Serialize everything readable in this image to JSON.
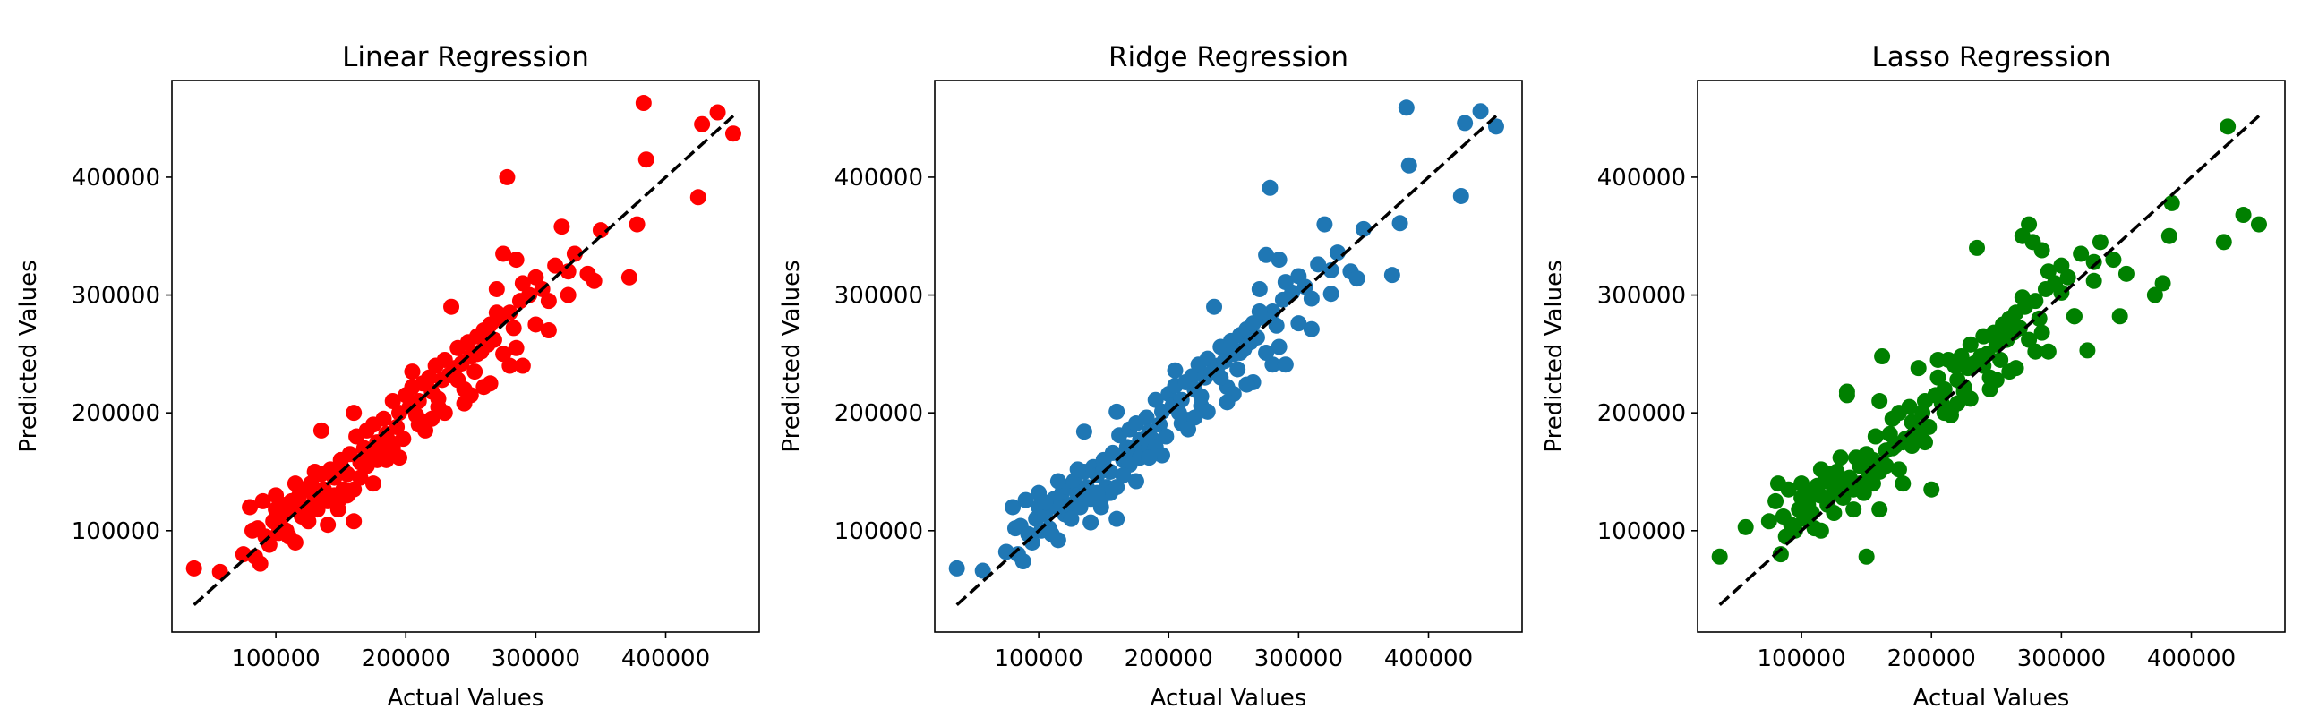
{
  "chart_data": [
    {
      "type": "scatter",
      "title": "Linear Regression",
      "xlabel": "Actual Values",
      "ylabel": "Predicted Values",
      "color": "#ff0000",
      "xlim": [
        20000,
        472000
      ],
      "ylim": [
        14000,
        482000
      ],
      "xticks": [
        100000,
        200000,
        300000,
        400000
      ],
      "yticks": [
        100000,
        200000,
        300000,
        400000
      ],
      "reference_line": {
        "x": [
          37000,
          452000
        ],
        "y": [
          37000,
          452000
        ],
        "style": "dashed",
        "color": "#000000"
      },
      "x": [
        37000,
        57000,
        75000,
        80000,
        82000,
        84000,
        86000,
        88000,
        90000,
        92000,
        95000,
        98000,
        100000,
        102000,
        105000,
        108000,
        110000,
        112000,
        114000,
        115000,
        118000,
        120000,
        122000,
        125000,
        127000,
        130000,
        132000,
        135000,
        137000,
        140000,
        142000,
        145000,
        148000,
        150000,
        152000,
        155000,
        157000,
        160000,
        162000,
        165000,
        168000,
        170000,
        172000,
        175000,
        178000,
        180000,
        183000,
        185000,
        188000,
        190000,
        193000,
        195000,
        198000,
        200000,
        203000,
        205000,
        208000,
        210000,
        213000,
        215000,
        218000,
        220000,
        223000,
        225000,
        228000,
        230000,
        233000,
        235000,
        238000,
        240000,
        243000,
        245000,
        248000,
        250000,
        253000,
        255000,
        258000,
        260000,
        263000,
        265000,
        268000,
        270000,
        272000,
        275000,
        278000,
        280000,
        283000,
        285000,
        288000,
        290000,
        295000,
        300000,
        305000,
        310000,
        315000,
        320000,
        325000,
        330000,
        340000,
        345000,
        350000,
        372000,
        378000,
        383000,
        385000,
        425000,
        428000,
        440000,
        452000,
        135000,
        150000,
        160000,
        178000,
        185000,
        205000,
        225000,
        240000,
        255000,
        270000,
        285000,
        300000,
        160000,
        140000,
        115000,
        100000,
        130000,
        148000,
        170000,
        190000,
        210000,
        230000,
        250000,
        265000,
        280000,
        215000,
        195000,
        175000,
        155000,
        120000,
        105000,
        125000,
        145000,
        165000,
        185000,
        220000,
        245000,
        260000,
        275000,
        290000,
        310000,
        325000
      ],
      "y": [
        68000,
        65000,
        80000,
        120000,
        100000,
        78000,
        102000,
        72000,
        125000,
        95000,
        88000,
        108000,
        118000,
        98000,
        112000,
        100000,
        95000,
        125000,
        118000,
        90000,
        130000,
        112000,
        135000,
        120000,
        140000,
        128000,
        118000,
        148000,
        135000,
        125000,
        152000,
        145000,
        118000,
        160000,
        135000,
        148000,
        165000,
        108000,
        180000,
        158000,
        170000,
        185000,
        162000,
        190000,
        175000,
        168000,
        195000,
        182000,
        175000,
        210000,
        188000,
        200000,
        178000,
        215000,
        205000,
        222000,
        198000,
        210000,
        225000,
        192000,
        230000,
        218000,
        240000,
        212000,
        228000,
        245000,
        232000,
        290000,
        238000,
        255000,
        242000,
        220000,
        260000,
        248000,
        235000,
        265000,
        252000,
        270000,
        258000,
        275000,
        262000,
        305000,
        280000,
        335000,
        400000,
        285000,
        272000,
        330000,
        295000,
        310000,
        300000,
        315000,
        305000,
        295000,
        325000,
        358000,
        320000,
        335000,
        318000,
        312000,
        355000,
        315000,
        360000,
        463000,
        415000,
        383000,
        445000,
        455000,
        437000,
        185000,
        150000,
        135000,
        160000,
        170000,
        235000,
        205000,
        228000,
        250000,
        285000,
        255000,
        275000,
        200000,
        105000,
        140000,
        130000,
        150000,
        125000,
        155000,
        170000,
        190000,
        200000,
        215000,
        225000,
        240000,
        185000,
        162000,
        140000,
        130000,
        118000,
        122000,
        108000,
        130000,
        145000,
        160000,
        195000,
        208000,
        222000,
        250000,
        240000,
        270000,
        300000
      ]
    },
    {
      "type": "scatter",
      "title": "Ridge Regression",
      "xlabel": "Actual Values",
      "ylabel": "Predicted Values",
      "color": "#1f77b4",
      "xlim": [
        20000,
        472000
      ],
      "ylim": [
        14000,
        482000
      ],
      "xticks": [
        100000,
        200000,
        300000,
        400000
      ],
      "yticks": [
        100000,
        200000,
        300000,
        400000
      ],
      "reference_line": {
        "x": [
          37000,
          452000
        ],
        "y": [
          37000,
          452000
        ],
        "style": "dashed",
        "color": "#000000"
      },
      "x": [
        37000,
        57000,
        75000,
        80000,
        82000,
        84000,
        86000,
        88000,
        90000,
        92000,
        95000,
        98000,
        100000,
        102000,
        105000,
        108000,
        110000,
        112000,
        114000,
        115000,
        118000,
        120000,
        122000,
        125000,
        127000,
        130000,
        132000,
        135000,
        137000,
        140000,
        142000,
        145000,
        148000,
        150000,
        152000,
        155000,
        157000,
        160000,
        162000,
        165000,
        168000,
        170000,
        172000,
        175000,
        178000,
        180000,
        183000,
        185000,
        188000,
        190000,
        193000,
        195000,
        198000,
        200000,
        203000,
        205000,
        208000,
        210000,
        213000,
        215000,
        218000,
        220000,
        223000,
        225000,
        228000,
        230000,
        233000,
        235000,
        238000,
        240000,
        243000,
        245000,
        248000,
        250000,
        253000,
        255000,
        258000,
        260000,
        263000,
        265000,
        268000,
        270000,
        272000,
        275000,
        278000,
        280000,
        283000,
        285000,
        288000,
        290000,
        295000,
        300000,
        305000,
        310000,
        315000,
        320000,
        325000,
        330000,
        340000,
        345000,
        350000,
        372000,
        378000,
        383000,
        385000,
        425000,
        428000,
        440000,
        452000,
        135000,
        150000,
        160000,
        178000,
        185000,
        205000,
        225000,
        240000,
        255000,
        270000,
        285000,
        300000,
        160000,
        140000,
        115000,
        100000,
        130000,
        148000,
        170000,
        190000,
        210000,
        230000,
        250000,
        265000,
        280000,
        215000,
        195000,
        175000,
        155000,
        120000,
        105000,
        125000,
        145000,
        165000,
        185000,
        220000,
        245000,
        260000,
        275000,
        290000,
        310000,
        325000
      ],
      "y": [
        68000,
        66000,
        82000,
        120000,
        102000,
        80000,
        104000,
        74000,
        126000,
        97000,
        90000,
        110000,
        120000,
        100000,
        114000,
        102000,
        97000,
        127000,
        120000,
        92000,
        132000,
        114000,
        137000,
        122000,
        142000,
        130000,
        120000,
        150000,
        137000,
        127000,
        154000,
        147000,
        120000,
        160000,
        137000,
        150000,
        166000,
        110000,
        181000,
        160000,
        171000,
        186000,
        164000,
        191000,
        177000,
        170000,
        196000,
        184000,
        177000,
        211000,
        190000,
        201000,
        180000,
        216000,
        206000,
        223000,
        200000,
        211000,
        226000,
        194000,
        231000,
        220000,
        241000,
        214000,
        230000,
        246000,
        234000,
        290000,
        240000,
        256000,
        244000,
        222000,
        261000,
        250000,
        237000,
        266000,
        254000,
        271000,
        260000,
        276000,
        264000,
        305000,
        281000,
        334000,
        391000,
        286000,
        274000,
        330000,
        296000,
        311000,
        302000,
        316000,
        307000,
        297000,
        326000,
        360000,
        321000,
        336000,
        320000,
        314000,
        356000,
        317000,
        361000,
        459000,
        410000,
        384000,
        446000,
        456000,
        443000,
        184000,
        152000,
        137000,
        162000,
        171000,
        236000,
        206000,
        230000,
        251000,
        286000,
        256000,
        276000,
        201000,
        107000,
        142000,
        132000,
        152000,
        127000,
        156000,
        171000,
        191000,
        201000,
        216000,
        226000,
        241000,
        186000,
        164000,
        142000,
        132000,
        120000,
        124000,
        110000,
        132000,
        147000,
        162000,
        196000,
        209000,
        224000,
        251000,
        241000,
        271000,
        301000
      ]
    },
    {
      "type": "scatter",
      "title": "Lasso Regression",
      "xlabel": "Actual Values",
      "ylabel": "Predicted Values",
      "color": "#008000",
      "xlim": [
        20000,
        472000
      ],
      "ylim": [
        14000,
        482000
      ],
      "xticks": [
        100000,
        200000,
        300000,
        400000
      ],
      "yticks": [
        100000,
        200000,
        300000,
        400000
      ],
      "reference_line": {
        "x": [
          37000,
          452000
        ],
        "y": [
          37000,
          452000
        ],
        "style": "dashed",
        "color": "#000000"
      },
      "x": [
        37000,
        57000,
        75000,
        80000,
        82000,
        84000,
        86000,
        88000,
        90000,
        92000,
        95000,
        98000,
        100000,
        102000,
        105000,
        108000,
        110000,
        112000,
        114000,
        115000,
        118000,
        120000,
        122000,
        125000,
        127000,
        130000,
        132000,
        135000,
        137000,
        140000,
        142000,
        145000,
        148000,
        150000,
        152000,
        155000,
        157000,
        160000,
        162000,
        165000,
        168000,
        170000,
        172000,
        175000,
        178000,
        180000,
        183000,
        185000,
        188000,
        190000,
        193000,
        195000,
        198000,
        200000,
        203000,
        205000,
        208000,
        210000,
        213000,
        215000,
        218000,
        220000,
        223000,
        225000,
        228000,
        230000,
        233000,
        235000,
        238000,
        240000,
        243000,
        245000,
        248000,
        250000,
        253000,
        255000,
        258000,
        260000,
        263000,
        265000,
        268000,
        270000,
        272000,
        275000,
        278000,
        280000,
        283000,
        285000,
        288000,
        290000,
        295000,
        300000,
        305000,
        310000,
        315000,
        320000,
        325000,
        330000,
        340000,
        345000,
        350000,
        372000,
        378000,
        383000,
        385000,
        425000,
        428000,
        440000,
        452000,
        135000,
        150000,
        160000,
        178000,
        185000,
        205000,
        225000,
        240000,
        255000,
        270000,
        285000,
        300000,
        160000,
        140000,
        115000,
        100000,
        130000,
        148000,
        170000,
        190000,
        210000,
        230000,
        250000,
        265000,
        280000,
        215000,
        195000,
        175000,
        155000,
        120000,
        105000,
        125000,
        145000,
        165000,
        185000,
        220000,
        245000,
        260000,
        275000,
        290000,
        310000,
        325000
      ],
      "y": [
        78000,
        103000,
        108000,
        125000,
        140000,
        80000,
        112000,
        95000,
        135000,
        105000,
        100000,
        118000,
        128000,
        110000,
        122000,
        115000,
        102000,
        138000,
        130000,
        100000,
        142000,
        122000,
        148000,
        135000,
        150000,
        140000,
        128000,
        218000,
        145000,
        135000,
        162000,
        155000,
        132000,
        78000,
        148000,
        160000,
        180000,
        118000,
        248000,
        168000,
        182000,
        195000,
        172000,
        200000,
        140000,
        178000,
        205000,
        192000,
        185000,
        238000,
        200000,
        210000,
        188000,
        135000,
        215000,
        230000,
        208000,
        220000,
        245000,
        202000,
        240000,
        228000,
        248000,
        222000,
        238000,
        258000,
        242000,
        340000,
        248000,
        265000,
        250000,
        230000,
        268000,
        258000,
        245000,
        275000,
        262000,
        280000,
        268000,
        285000,
        272000,
        350000,
        290000,
        360000,
        345000,
        295000,
        280000,
        338000,
        305000,
        320000,
        310000,
        325000,
        315000,
        282000,
        335000,
        253000,
        328000,
        345000,
        330000,
        282000,
        318000,
        300000,
        310000,
        350000,
        378000,
        345000,
        443000,
        368000,
        360000,
        215000,
        165000,
        150000,
        175000,
        180000,
        245000,
        218000,
        240000,
        262000,
        298000,
        268000,
        302000,
        210000,
        118000,
        152000,
        140000,
        162000,
        135000,
        170000,
        182000,
        200000,
        212000,
        228000,
        238000,
        252000,
        198000,
        175000,
        152000,
        140000,
        128000,
        132000,
        115000,
        140000,
        155000,
        172000,
        208000,
        220000,
        235000,
        262000,
        252000,
        282000,
        312000
      ]
    }
  ]
}
